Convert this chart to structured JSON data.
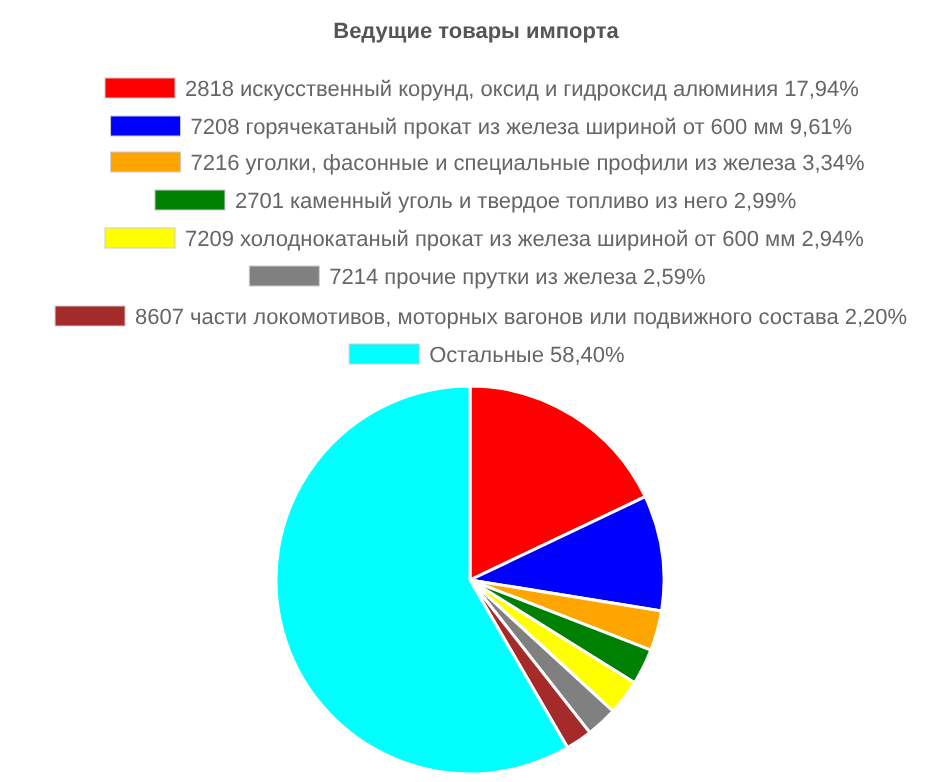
{
  "chart_data": {
    "type": "pie",
    "title": "Ведущие товары импорта",
    "categories": [
      "2818 искусственный корунд, оксид и гидроксид алюминия 17,94%",
      "7208 горячекатаный прокат из железа шириной от 600 мм 9,61%",
      "7216 уголки, фасонные и специальные профили из железа 3,34%",
      "2701 каменный уголь и твердое топливо из него 2,99%",
      "7209 холоднокатаный прокат из железа шириной от 600 мм 2,94%",
      "7214 прочие прутки из железа 2,59%",
      "8607 части локомотивов, моторных вагонов или подвижного состава 2,20%",
      "Остальные 58,40%"
    ],
    "values": [
      17.94,
      9.61,
      3.34,
      2.99,
      2.94,
      2.59,
      2.2,
      58.4
    ],
    "colors": [
      "#ff0000",
      "#0000ff",
      "#ffa500",
      "#008000",
      "#ffff00",
      "#808080",
      "#a52a2a",
      "#00ffff"
    ],
    "legend": "top"
  }
}
